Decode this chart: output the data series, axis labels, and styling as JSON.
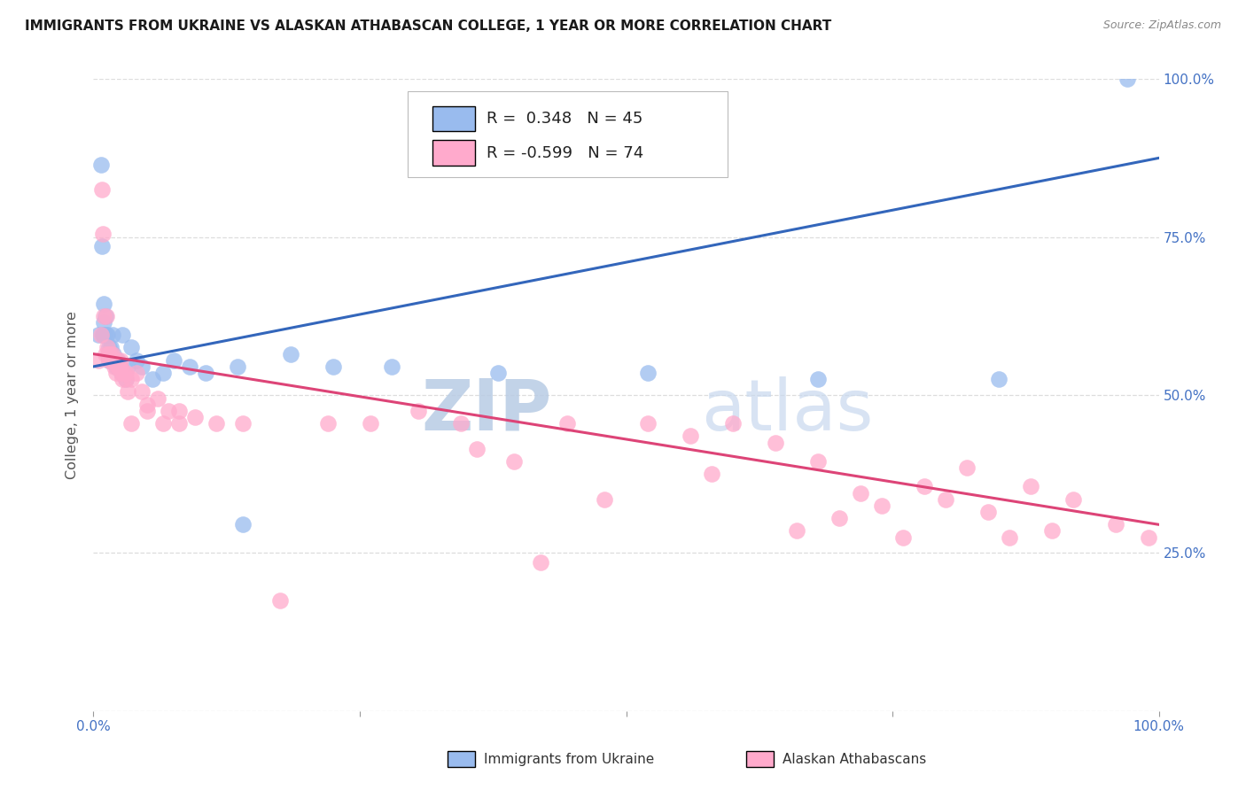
{
  "title": "IMMIGRANTS FROM UKRAINE VS ALASKAN ATHABASCAN COLLEGE, 1 YEAR OR MORE CORRELATION CHART",
  "source_text": "Source: ZipAtlas.com",
  "ylabel": "College, 1 year or more",
  "xlim": [
    0.0,
    1.0
  ],
  "ylim": [
    0.0,
    1.0
  ],
  "background_color": "#ffffff",
  "blue_color": "#99bbee",
  "pink_color": "#ffaacc",
  "blue_line_color": "#3366bb",
  "pink_line_color": "#dd4477",
  "grid_color": "#dddddd",
  "legend_r_blue": "0.348",
  "legend_n_blue": "45",
  "legend_r_pink": "-0.599",
  "legend_n_pink": "74",
  "watermark_zip": "ZIP",
  "watermark_atlas": "atlas",
  "watermark_color_zip": "#c8d8ee",
  "watermark_color_atlas": "#c8d8ee",
  "blue_line_x0": 0.0,
  "blue_line_y0": 0.545,
  "blue_line_x1": 1.0,
  "blue_line_y1": 0.875,
  "pink_line_x0": 0.0,
  "pink_line_y0": 0.565,
  "pink_line_x1": 1.0,
  "pink_line_y1": 0.295,
  "blue_x": [
    0.005,
    0.007,
    0.008,
    0.009,
    0.01,
    0.01,
    0.01,
    0.011,
    0.012,
    0.013,
    0.014,
    0.015,
    0.015,
    0.016,
    0.017,
    0.018,
    0.019,
    0.02,
    0.021,
    0.022,
    0.023,
    0.024,
    0.025,
    0.026,
    0.027,
    0.03,
    0.032,
    0.035,
    0.04,
    0.045,
    0.055,
    0.065,
    0.075,
    0.09,
    0.105,
    0.135,
    0.185,
    0.225,
    0.38,
    0.52,
    0.68,
    0.85,
    0.97,
    0.14,
    0.28
  ],
  "blue_y": [
    0.595,
    0.865,
    0.735,
    0.595,
    0.645,
    0.615,
    0.595,
    0.625,
    0.595,
    0.595,
    0.565,
    0.575,
    0.555,
    0.575,
    0.555,
    0.595,
    0.565,
    0.555,
    0.545,
    0.545,
    0.555,
    0.545,
    0.545,
    0.535,
    0.595,
    0.525,
    0.545,
    0.575,
    0.555,
    0.545,
    0.525,
    0.535,
    0.555,
    0.545,
    0.535,
    0.545,
    0.565,
    0.545,
    0.535,
    0.535,
    0.525,
    0.525,
    1.0,
    0.295,
    0.545
  ],
  "pink_x": [
    0.005,
    0.007,
    0.008,
    0.009,
    0.01,
    0.011,
    0.012,
    0.013,
    0.014,
    0.015,
    0.016,
    0.017,
    0.018,
    0.019,
    0.02,
    0.021,
    0.022,
    0.023,
    0.024,
    0.025,
    0.026,
    0.027,
    0.028,
    0.03,
    0.032,
    0.035,
    0.04,
    0.045,
    0.05,
    0.06,
    0.07,
    0.08,
    0.095,
    0.115,
    0.14,
    0.175,
    0.22,
    0.26,
    0.305,
    0.345,
    0.395,
    0.445,
    0.48,
    0.52,
    0.56,
    0.6,
    0.64,
    0.68,
    0.72,
    0.76,
    0.8,
    0.84,
    0.88,
    0.92,
    0.96,
    0.99,
    0.36,
    0.42,
    0.58,
    0.66,
    0.7,
    0.74,
    0.78,
    0.82,
    0.86,
    0.9,
    0.035,
    0.05,
    0.065,
    0.08,
    0.015,
    0.02,
    0.025,
    0.03
  ],
  "pink_y": [
    0.555,
    0.595,
    0.825,
    0.755,
    0.625,
    0.565,
    0.625,
    0.575,
    0.565,
    0.565,
    0.565,
    0.555,
    0.565,
    0.555,
    0.545,
    0.535,
    0.555,
    0.545,
    0.545,
    0.545,
    0.535,
    0.525,
    0.535,
    0.525,
    0.505,
    0.525,
    0.535,
    0.505,
    0.475,
    0.495,
    0.475,
    0.475,
    0.465,
    0.455,
    0.455,
    0.175,
    0.455,
    0.455,
    0.475,
    0.455,
    0.395,
    0.455,
    0.335,
    0.455,
    0.435,
    0.455,
    0.425,
    0.395,
    0.345,
    0.275,
    0.335,
    0.315,
    0.355,
    0.335,
    0.295,
    0.275,
    0.415,
    0.235,
    0.375,
    0.285,
    0.305,
    0.325,
    0.355,
    0.385,
    0.275,
    0.285,
    0.455,
    0.485,
    0.455,
    0.455,
    0.555,
    0.555,
    0.555,
    0.535
  ]
}
